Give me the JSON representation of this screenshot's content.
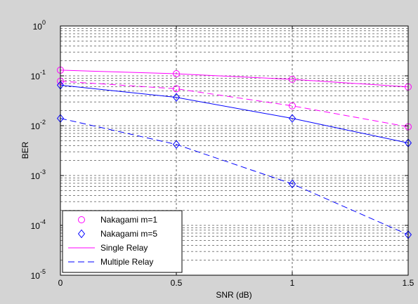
{
  "chart_data": {
    "type": "line",
    "xlabel": "SNR (dB)",
    "ylabel": "BER",
    "xlim": [
      0,
      1.5
    ],
    "ylim": [
      1e-05,
      1
    ],
    "yscale": "log",
    "grid": true,
    "legend_position": "bottom-left",
    "x_ticks": [
      {
        "value": 0,
        "label": "0"
      },
      {
        "value": 0.5,
        "label": "0.5"
      },
      {
        "value": 1,
        "label": "1"
      },
      {
        "value": 1.5,
        "label": "1.5"
      }
    ],
    "y_ticks": [
      {
        "exp": 0,
        "base": "10",
        "sup": "0"
      },
      {
        "exp": -1,
        "base": "10",
        "sup": "-1"
      },
      {
        "exp": -2,
        "base": "10",
        "sup": "-2"
      },
      {
        "exp": -3,
        "base": "10",
        "sup": "-3"
      },
      {
        "exp": -4,
        "base": "10",
        "sup": "-4"
      },
      {
        "exp": -5,
        "base": "10",
        "sup": "-5"
      }
    ],
    "x": [
      0,
      0.5,
      1,
      1.5
    ],
    "series": [
      {
        "key": "nak1_single",
        "color": "#ff00ff",
        "dash": "solid",
        "marker": "circle",
        "values": [
          0.13,
          0.11,
          0.085,
          0.06
        ]
      },
      {
        "key": "nak1_multiple",
        "color": "#ff00ff",
        "dash": "dashed",
        "marker": "circle",
        "values": [
          0.078,
          0.055,
          0.025,
          0.0095
        ]
      },
      {
        "key": "nak5_single",
        "color": "#0000ff",
        "dash": "solid",
        "marker": "diamond",
        "values": [
          0.065,
          0.037,
          0.014,
          0.0045
        ]
      },
      {
        "key": "nak5_multiple",
        "color": "#0000ff",
        "dash": "dashed",
        "marker": "diamond",
        "values": [
          0.014,
          0.0042,
          0.00068,
          6.5e-05
        ]
      }
    ],
    "legend": [
      {
        "label": "Nakagami m=1",
        "color": "#ff00ff",
        "marker": "circle",
        "line": "none"
      },
      {
        "label": "Nakagami m=5",
        "color": "#0000ff",
        "marker": "diamond",
        "line": "none"
      },
      {
        "label": "Single Relay",
        "color": "#ff00ff",
        "marker": "none",
        "line": "solid"
      },
      {
        "label": "Multiple Relay",
        "color": "#0000ff",
        "marker": "none",
        "line": "dashed"
      }
    ]
  }
}
